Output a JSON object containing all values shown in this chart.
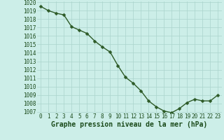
{
  "x": [
    0,
    1,
    2,
    3,
    4,
    5,
    6,
    7,
    8,
    9,
    10,
    11,
    12,
    13,
    14,
    15,
    16,
    17,
    18,
    19,
    20,
    21,
    22,
    23
  ],
  "y": [
    1019.5,
    1019.0,
    1018.7,
    1018.5,
    1017.1,
    1016.7,
    1016.3,
    1015.4,
    1014.7,
    1014.1,
    1012.5,
    1011.1,
    1010.4,
    1009.5,
    1008.3,
    1007.6,
    1007.1,
    1006.9,
    1007.4,
    1008.1,
    1008.5,
    1008.3,
    1008.3,
    1009.0
  ],
  "line_color": "#2d5a27",
  "marker_color": "#2d5a27",
  "background_color": "#cceee8",
  "grid_color": "#aad4cc",
  "xlabel": "Graphe pression niveau de la mer (hPa)",
  "xlabel_color": "#1a4a1a",
  "tick_color": "#1a4a1a",
  "ylim": [
    1007,
    1020
  ],
  "xlim_min": -0.5,
  "xlim_max": 23.5,
  "yticks": [
    1007,
    1008,
    1009,
    1010,
    1011,
    1012,
    1013,
    1014,
    1015,
    1016,
    1017,
    1018,
    1019,
    1020
  ],
  "xticks": [
    0,
    1,
    2,
    3,
    4,
    5,
    6,
    7,
    8,
    9,
    10,
    11,
    12,
    13,
    14,
    15,
    16,
    17,
    18,
    19,
    20,
    21,
    22,
    23
  ],
  "line_width": 1.0,
  "marker_size": 2.5,
  "tick_fontsize": 5.5,
  "xlabel_fontsize": 7.0
}
